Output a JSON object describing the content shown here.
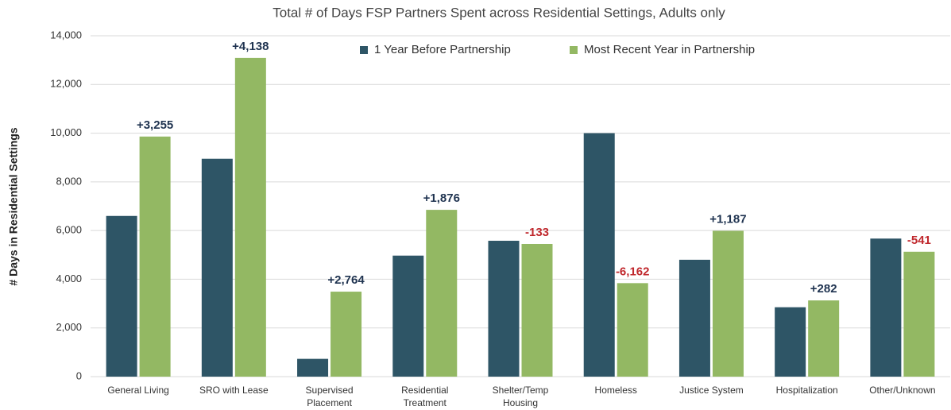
{
  "chart_data": {
    "type": "bar",
    "title": "Total # of Days FSP Partners Spent across Residential Settings, Adults only",
    "y_label": "# Days in Residential Settings",
    "categories": [
      "General Living",
      "SRO with Lease",
      "Supervised\nPlacement",
      "Residential\nTreatment",
      "Shelter/Temp\nHousing",
      "Homeless",
      "Justice System",
      "Hospitalization",
      "Other/Unknown"
    ],
    "series": [
      {
        "name": "1 Year Before Partnership",
        "color": "#2e5566",
        "values": [
          6600,
          8950,
          730,
          4970,
          5580,
          10000,
          4800,
          2850,
          5670
        ]
      },
      {
        "name": "Most Recent Year in Partnership",
        "color": "#93b863",
        "values": [
          9860,
          13090,
          3490,
          6850,
          5450,
          3840,
          5990,
          3130,
          5130
        ]
      }
    ],
    "annotations": [
      {
        "text": "+3,255",
        "color": "#1f3350"
      },
      {
        "text": "+4,138",
        "color": "#1f3350"
      },
      {
        "text": "+2,764",
        "color": "#1f3350"
      },
      {
        "text": "+1,876",
        "color": "#1f3350"
      },
      {
        "text": "-133",
        "color": "#c0282d"
      },
      {
        "text": "-6,162",
        "color": "#c0282d"
      },
      {
        "text": "+1,187",
        "color": "#1f3350"
      },
      {
        "text": "+282",
        "color": "#1f3350"
      },
      {
        "text": "-541",
        "color": "#c0282d"
      }
    ],
    "ylim": [
      0,
      14000
    ],
    "yticks": [
      0,
      {
        "value": 2000,
        "label": "2,000"
      },
      {
        "value": 4000,
        "label": "4,000"
      },
      {
        "value": 6000,
        "label": "6,000"
      },
      {
        "value": 8000,
        "label": "8,000"
      },
      {
        "value": 10000,
        "label": "10,000"
      },
      {
        "value": 12000,
        "label": "12,000"
      },
      {
        "value": 14000,
        "label": "14,000"
      }
    ],
    "grid": true
  }
}
